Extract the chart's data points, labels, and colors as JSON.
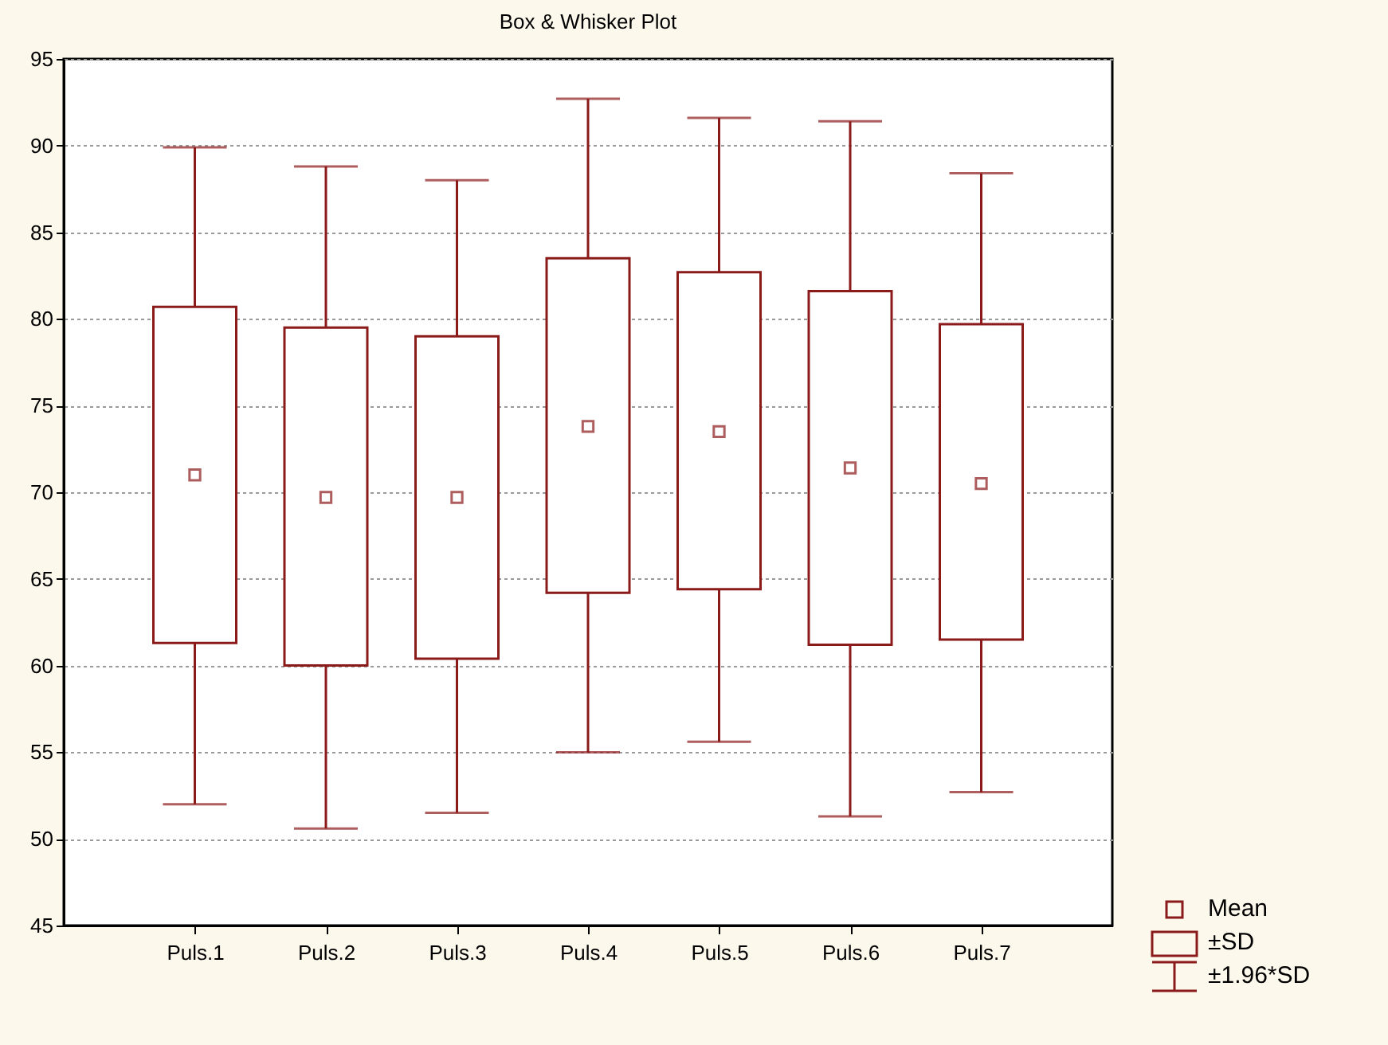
{
  "chart_data": {
    "type": "box",
    "title": "Box & Whisker Plot",
    "color": "#8b1a1a",
    "categories": [
      "Puls.1",
      "Puls.2",
      "Puls.3",
      "Puls.4",
      "Puls.5",
      "Puls.6",
      "Puls.7"
    ],
    "boxes": [
      {
        "low": 52.0,
        "q1": 61.3,
        "q3": 80.7,
        "high": 89.9,
        "mean": 71.0
      },
      {
        "low": 50.6,
        "q1": 60.0,
        "q3": 79.5,
        "high": 88.8,
        "mean": 69.7
      },
      {
        "low": 51.5,
        "q1": 60.4,
        "q3": 79.0,
        "high": 88.0,
        "mean": 69.7
      },
      {
        "low": 55.0,
        "q1": 64.2,
        "q3": 83.5,
        "high": 92.7,
        "mean": 73.8
      },
      {
        "low": 55.6,
        "q1": 64.4,
        "q3": 82.7,
        "high": 91.6,
        "mean": 73.5
      },
      {
        "low": 51.3,
        "q1": 61.2,
        "q3": 81.6,
        "high": 91.4,
        "mean": 71.4
      },
      {
        "low": 52.7,
        "q1": 61.5,
        "q3": 79.7,
        "high": 88.4,
        "mean": 70.5
      }
    ],
    "ylim": [
      45,
      95
    ],
    "yticks": [
      45,
      50,
      55,
      60,
      65,
      70,
      75,
      80,
      85,
      90,
      95
    ],
    "grid": "y",
    "marker": "square",
    "annotations": [
      "Mean",
      "±SD",
      "±1.96*SD"
    ]
  }
}
